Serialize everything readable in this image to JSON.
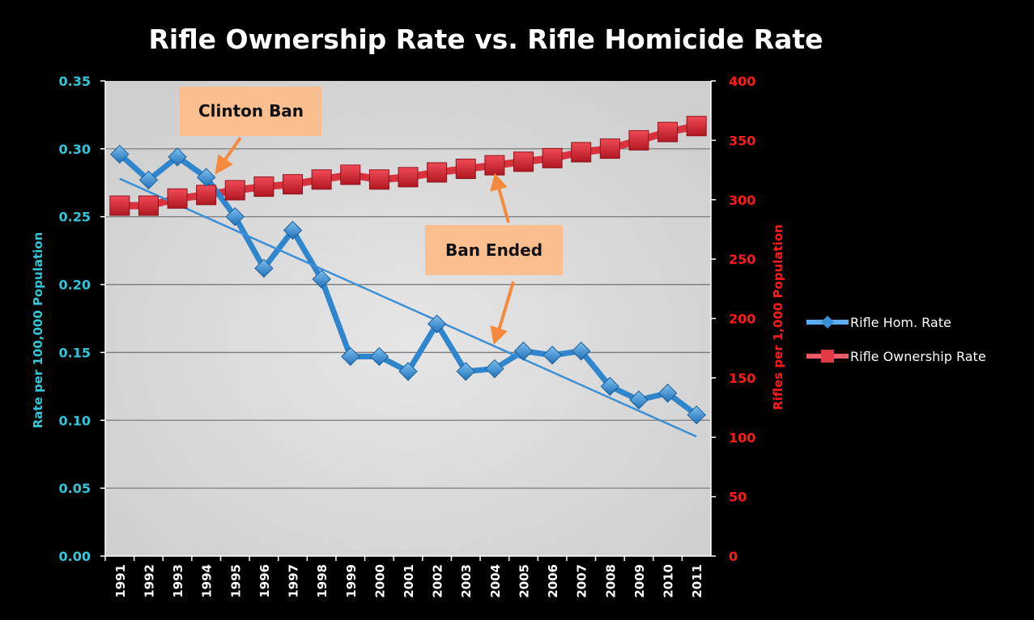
{
  "chart_data": {
    "type": "line",
    "title": "Rifle Ownership Rate vs. Rifle Homicide Rate",
    "xlabel": "",
    "ylabel": "Rate per 100,000 Population",
    "y2label": "Rifles per 1,000 Population",
    "categories": [
      "1991",
      "1992",
      "1993",
      "1994",
      "1995",
      "1996",
      "1997",
      "1998",
      "1999",
      "2000",
      "2001",
      "2002",
      "2003",
      "2004",
      "2005",
      "2006",
      "2007",
      "2008",
      "2009",
      "2010",
      "2011"
    ],
    "ylim": [
      0,
      0.35
    ],
    "y2lim": [
      0,
      400
    ],
    "yticks": [
      "0.00",
      "0.05",
      "0.10",
      "0.15",
      "0.20",
      "0.25",
      "0.30",
      "0.35"
    ],
    "y2ticks": [
      "0",
      "50",
      "100",
      "150",
      "200",
      "250",
      "300",
      "350",
      "400"
    ],
    "grid": true,
    "legend_position": "right",
    "series": [
      {
        "name": "Rifle Hom. Rate",
        "axis": "left",
        "color": "#3a8fd6",
        "marker": "diamond",
        "values": [
          0.296,
          0.277,
          0.294,
          0.279,
          0.25,
          0.212,
          0.24,
          0.204,
          0.147,
          0.147,
          0.136,
          0.171,
          0.136,
          0.138,
          0.151,
          0.148,
          0.151,
          0.125,
          0.115,
          0.12,
          0.104
        ]
      },
      {
        "name": "Rifle Ownership Rate",
        "axis": "right",
        "color": "#d42a35",
        "marker": "square",
        "values": [
          295,
          295,
          301,
          304,
          308,
          311,
          313,
          317,
          321,
          317,
          319,
          323,
          326,
          329,
          332,
          335,
          340,
          343,
          350,
          357,
          362
        ]
      }
    ],
    "trendline": {
      "series": "Rifle Hom. Rate",
      "type": "linear",
      "start": 0.278,
      "end": 0.088,
      "color": "#3a8fd6"
    },
    "annotations": [
      {
        "text": "Clinton Ban",
        "points_to": "1994"
      },
      {
        "text": "Ban Ended",
        "points_to": "2004"
      }
    ],
    "colors": {
      "left_axis": "#33c6d8",
      "right_axis": "#ff1a1a",
      "plot_bg": "#d9d9d9",
      "annotation_bg": "#fbbf8f",
      "arrow": "#f58a3c"
    }
  }
}
